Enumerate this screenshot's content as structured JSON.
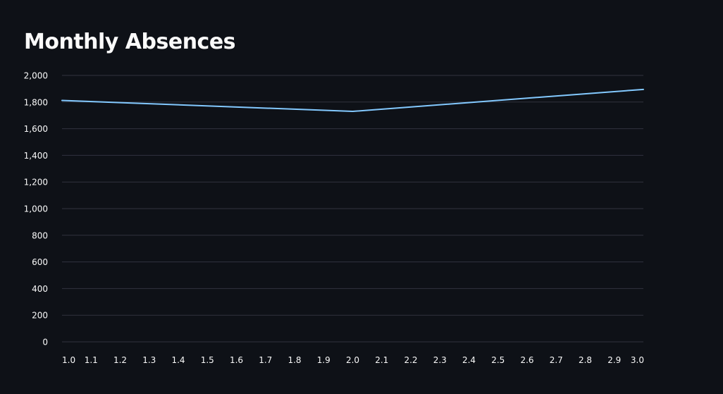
{
  "chart_data": {
    "type": "line",
    "title": "Monthly Absences",
    "xlabel": "",
    "ylabel": "",
    "xlim": [
      1.0,
      3.0
    ],
    "ylim": [
      0,
      2000
    ],
    "x_ticks": [
      "1.0",
      "1.1",
      "1.2",
      "1.3",
      "1.4",
      "1.5",
      "1.6",
      "1.7",
      "1.8",
      "1.9",
      "2.0",
      "2.1",
      "2.2",
      "2.3",
      "2.4",
      "2.5",
      "2.6",
      "2.7",
      "2.8",
      "2.9",
      "3.0"
    ],
    "y_ticks": [
      "0",
      "200",
      "400",
      "600",
      "800",
      "1,000",
      "1,200",
      "1,400",
      "1,600",
      "1,800",
      "2,000"
    ],
    "grid": true,
    "series": [
      {
        "x": [
          1.0,
          2.0,
          3.0
        ],
        "y": [
          1812,
          1730,
          1895
        ],
        "color": "#83c9ff"
      }
    ]
  }
}
